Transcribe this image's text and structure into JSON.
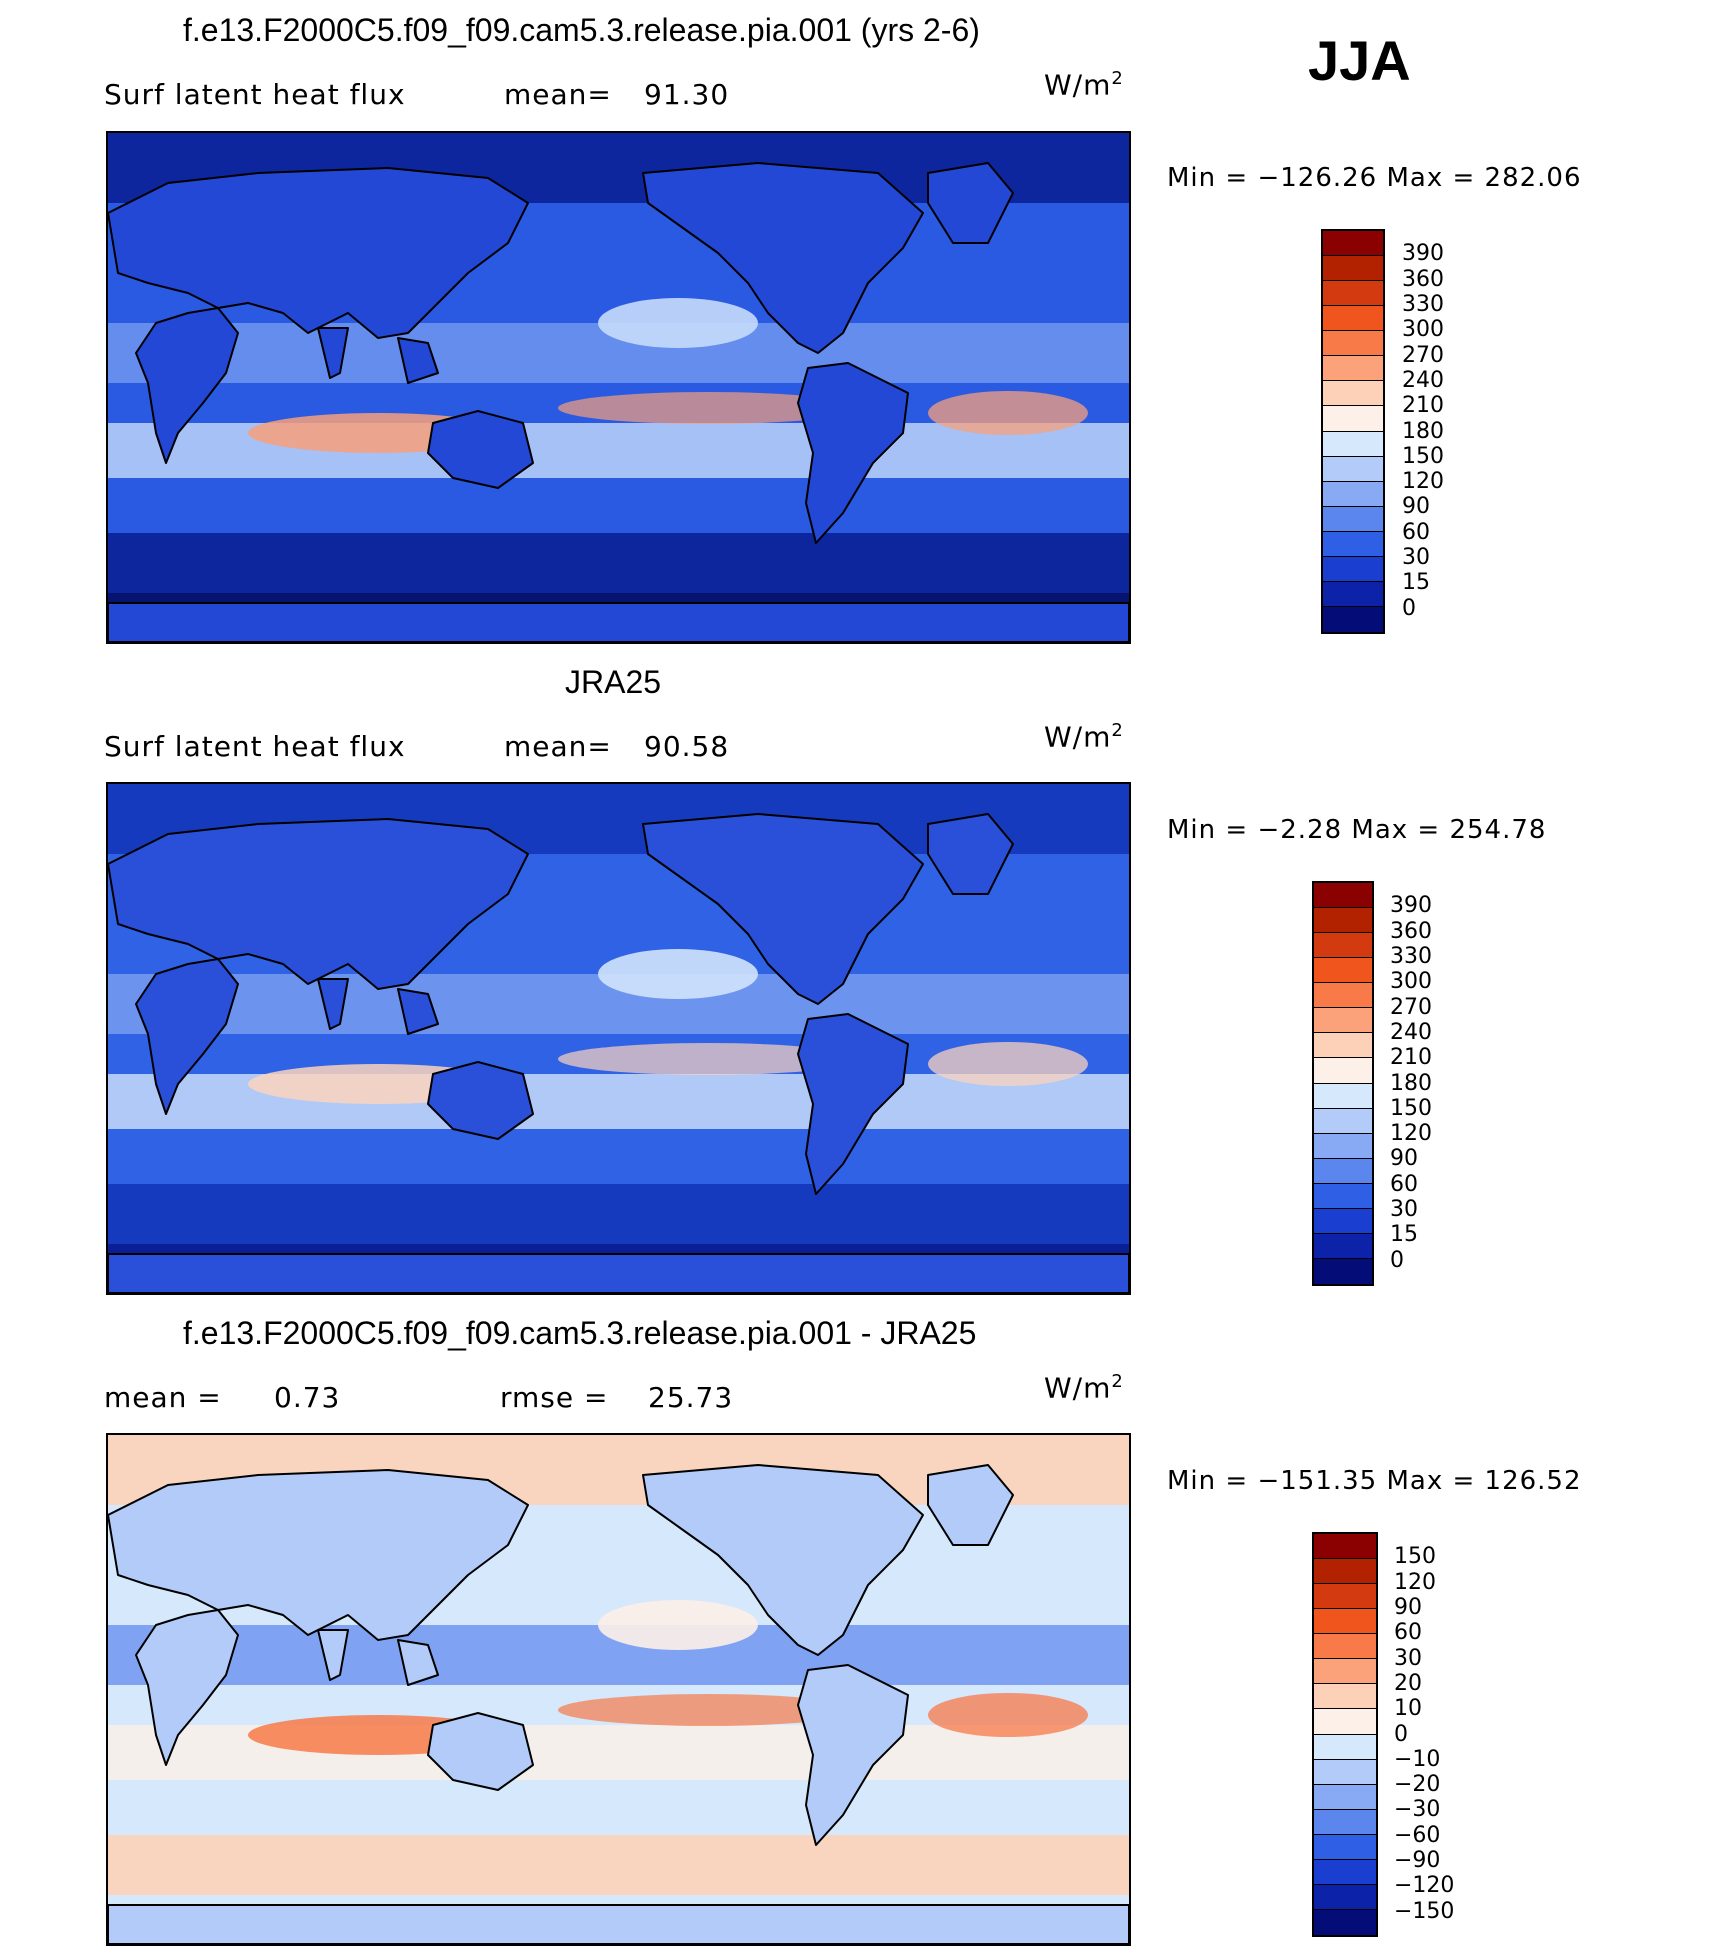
{
  "season": "JJA",
  "panels": [
    {
      "id": "model",
      "title": "f.e13.F2000C5.f09_f09.cam5.3.release.pia.001 (yrs 2-6)",
      "left_label": "Surf latent heat flux",
      "middle_label": "mean=",
      "middle_value": "91.30",
      "units": "W/m",
      "units_sup": "2",
      "minmax": "Min = −126.26 Max = 282.06",
      "colorbar": {
        "labels": [
          "390",
          "360",
          "330",
          "300",
          "270",
          "240",
          "210",
          "180",
          "150",
          "120",
          "90",
          "60",
          "30",
          "15",
          "0"
        ],
        "colors": [
          "#8b0000",
          "#b22200",
          "#d43a10",
          "#f0551e",
          "#f77a48",
          "#fba27a",
          "#fdd1b8",
          "#fdf0e8",
          "#d6e8fb",
          "#b3cbf8",
          "#88aaf4",
          "#5a86ee",
          "#2f5fe4",
          "#1a3fd0",
          "#0c22a8",
          "#040c78"
        ]
      },
      "map_palette": {
        "ocean": "#2a5ae2",
        "deep": "#0a1f96",
        "pole": "#061470",
        "land": "#2448d6",
        "warm": "#f7a07c",
        "light": "#c6dbfb",
        "mid": "#7ea2f2"
      }
    },
    {
      "id": "obs",
      "title": "JRA25",
      "left_label": "Surf latent heat flux",
      "middle_label": "mean=",
      "middle_value": "90.58",
      "units": "W/m",
      "units_sup": "2",
      "minmax": "Min =  −2.28 Max = 254.78",
      "colorbar": {
        "labels": [
          "390",
          "360",
          "330",
          "300",
          "270",
          "240",
          "210",
          "180",
          "150",
          "120",
          "90",
          "60",
          "30",
          "15",
          "0"
        ],
        "colors": [
          "#8b0000",
          "#b22200",
          "#d43a10",
          "#f0551e",
          "#f77a48",
          "#fba27a",
          "#fdd1b8",
          "#fdf0e8",
          "#d6e8fb",
          "#b3cbf8",
          "#88aaf4",
          "#5a86ee",
          "#2f5fe4",
          "#1a3fd0",
          "#0c22a8",
          "#040c78"
        ]
      },
      "map_palette": {
        "ocean": "#2f62e4",
        "deep": "#1436b8",
        "pole": "#0a1f96",
        "land": "#2a50da",
        "warm": "#fbd3be",
        "light": "#d2e4fb",
        "mid": "#86a8f2"
      }
    },
    {
      "id": "diff",
      "title": "f.e13.F2000C5.f09_f09.cam5.3.release.pia.001 - JRA25",
      "left_label": "mean =",
      "left_value": "0.73",
      "middle_label": "rmse =",
      "middle_value": "25.73",
      "units": "W/m",
      "units_sup": "2",
      "minmax": "Min = −151.35 Max = 126.52",
      "colorbar": {
        "labels": [
          "150",
          "120",
          "90",
          "60",
          "30",
          "20",
          "10",
          "0",
          "−10",
          "−20",
          "−30",
          "−60",
          "−90",
          "−120",
          "−150"
        ],
        "colors": [
          "#8b0000",
          "#b22200",
          "#d43a10",
          "#f0551e",
          "#f77a48",
          "#fba27a",
          "#fdd1b8",
          "#fdf0e8",
          "#d6e8fb",
          "#b3cbf8",
          "#88aaf4",
          "#5a86ee",
          "#2f5fe4",
          "#1a3fd0",
          "#0c22a8",
          "#040c78"
        ]
      },
      "map_palette": {
        "ocean": "#d6e8fb",
        "deep": "#fdd1b8",
        "pole": "#d6e8fb",
        "land": "#b3cbf8",
        "warm": "#f77a48",
        "light": "#fdf0e8",
        "mid": "#5a86ee"
      }
    }
  ]
}
